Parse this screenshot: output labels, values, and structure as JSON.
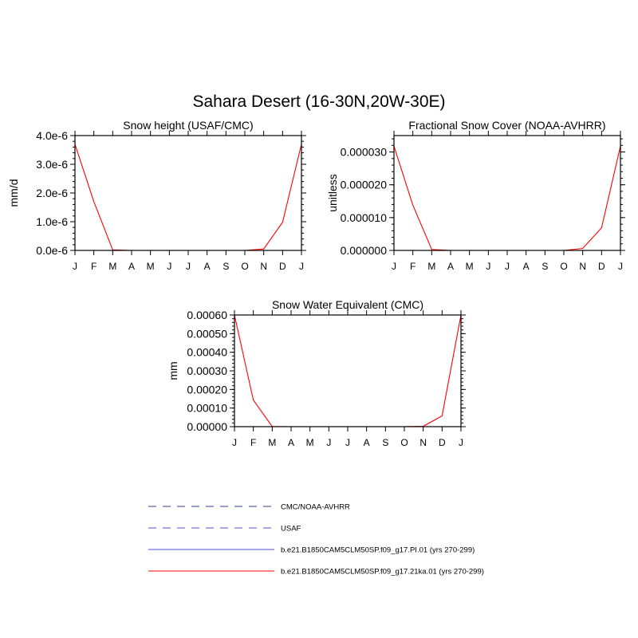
{
  "figure_title": "Sahara Desert (16-30N,20W-30E)",
  "colors": {
    "model_red": "#ff0000",
    "model_blue": "#4b4bd8",
    "obs_dash": "#2f3f8f",
    "usaf_dash": "#5050e0"
  },
  "chart_data": [
    {
      "type": "line",
      "title": "Snow height (USAF/CMC)",
      "xlabel": "",
      "ylabel": "mm/d",
      "x": [
        "J",
        "F",
        "M",
        "A",
        "M",
        "J",
        "J",
        "A",
        "S",
        "O",
        "N",
        "D",
        "J"
      ],
      "ylim": [
        0,
        4e-06
      ],
      "yticks": [
        0,
        1e-06,
        2e-06,
        3e-06,
        4e-06
      ],
      "ytick_labels": [
        "0.0e-6",
        "1.0e-6",
        "2.0e-6",
        "3.0e-6",
        "4.0e-6"
      ],
      "series": [
        {
          "name": "b.e21.B1850CAM5CLM50SP.f09_g17.21ka.01 (yrs 270-299)",
          "color": "#ff0000",
          "dash": "solid",
          "values": [
            3.7e-06,
            1.7e-06,
            2e-08,
            0,
            0,
            0,
            0,
            0,
            0,
            0,
            5e-08,
            9.8e-07,
            3.7e-06
          ]
        },
        {
          "name": "b.e21.B1850CAM5CLM50SP.f09_g17.PI.01 (yrs 270-299)",
          "color": "#4b4bd8",
          "dash": "solid",
          "values": [
            0,
            0,
            0,
            0,
            0,
            0,
            0,
            0,
            0,
            0,
            0,
            0,
            0
          ]
        },
        {
          "name": "CMC/NOAA-AVHRR",
          "color": "#2f3f8f",
          "dash": "dash",
          "values": [
            0,
            0,
            0,
            0,
            0,
            0,
            0,
            0,
            0,
            0,
            0,
            0,
            0
          ]
        },
        {
          "name": "USAF",
          "color": "#5050e0",
          "dash": "dash",
          "values": [
            0,
            0,
            0,
            0,
            0,
            0,
            0,
            0,
            0,
            0,
            0,
            0,
            0
          ]
        }
      ]
    },
    {
      "type": "line",
      "title": "Fractional Snow Cover (NOAA-AVHRR)",
      "xlabel": "",
      "ylabel": "unitless",
      "x": [
        "J",
        "F",
        "M",
        "A",
        "M",
        "J",
        "J",
        "A",
        "S",
        "O",
        "N",
        "D",
        "J"
      ],
      "ylim": [
        0,
        3.5e-05
      ],
      "yticks": [
        0,
        1e-05,
        2e-05,
        3e-05
      ],
      "ytick_labels": [
        "0.000000",
        "0.000010",
        "0.000020",
        "0.000030"
      ],
      "series": [
        {
          "name": "b.e21.B1850CAM5CLM50SP.f09_g17.21ka.01 (yrs 270-299)",
          "color": "#ff0000",
          "dash": "solid",
          "values": [
            3.18e-05,
            1.38e-05,
            3e-07,
            0,
            0,
            0,
            0,
            0,
            0,
            0,
            6e-07,
            6.9e-06,
            3.18e-05
          ]
        },
        {
          "name": "b.e21.B1850CAM5CLM50SP.f09_g17.PI.01 (yrs 270-299)",
          "color": "#4b4bd8",
          "dash": "solid",
          "values": [
            0,
            0,
            0,
            0,
            0,
            0,
            0,
            0,
            0,
            0,
            0,
            0,
            0
          ]
        },
        {
          "name": "CMC/NOAA-AVHRR",
          "color": "#2f3f8f",
          "dash": "dash",
          "values": [
            0,
            0,
            0,
            0,
            0,
            0,
            0,
            0,
            0,
            0,
            0,
            0,
            0
          ]
        }
      ]
    },
    {
      "type": "line",
      "title": "Snow Water Equivalent (CMC)",
      "xlabel": "",
      "ylabel": "mm",
      "x": [
        "J",
        "F",
        "M",
        "A",
        "M",
        "J",
        "J",
        "A",
        "S",
        "O",
        "N",
        "D",
        "J"
      ],
      "ylim": [
        0,
        0.0006
      ],
      "yticks": [
        0,
        0.0001,
        0.0002,
        0.0003,
        0.0004,
        0.0005,
        0.0006
      ],
      "ytick_labels": [
        "0.00000",
        "0.00010",
        "0.00020",
        "0.00030",
        "0.00040",
        "0.00050",
        "0.00060"
      ],
      "series": [
        {
          "name": "b.e21.B1850CAM5CLM50SP.f09_g17.21ka.01 (yrs 270-299)",
          "color": "#ff0000",
          "dash": "solid",
          "values": [
            0.0006,
            0.000143,
            1e-06,
            0,
            0,
            0,
            0,
            0,
            0,
            0,
            2e-06,
            5.8e-05,
            0.0006
          ]
        },
        {
          "name": "b.e21.B1850CAM5CLM50SP.f09_g17.PI.01 (yrs 270-299)",
          "color": "#4b4bd8",
          "dash": "solid",
          "values": [
            0,
            0,
            0,
            0,
            0,
            0,
            0,
            0,
            0,
            0,
            0,
            0,
            0
          ]
        },
        {
          "name": "CMC/NOAA-AVHRR",
          "color": "#2f3f8f",
          "dash": "dash",
          "values": [
            0,
            0,
            0,
            0,
            0,
            0,
            0,
            0,
            0,
            0,
            0,
            0,
            0
          ]
        }
      ]
    }
  ],
  "legend": {
    "placement": "bottom",
    "items": [
      {
        "label": "CMC/NOAA-AVHRR",
        "color": "#2f3f8f",
        "dash": "dash"
      },
      {
        "label": "USAF",
        "color": "#5050e0",
        "dash": "dash"
      },
      {
        "label": "b.e21.B1850CAM5CLM50SP.f09_g17.PI.01 (yrs 270-299)",
        "color": "#4b4bd8",
        "dash": "solid"
      },
      {
        "label": "b.e21.B1850CAM5CLM50SP.f09_g17.21ka.01 (yrs 270-299)",
        "color": "#ff0000",
        "dash": "solid"
      }
    ]
  }
}
